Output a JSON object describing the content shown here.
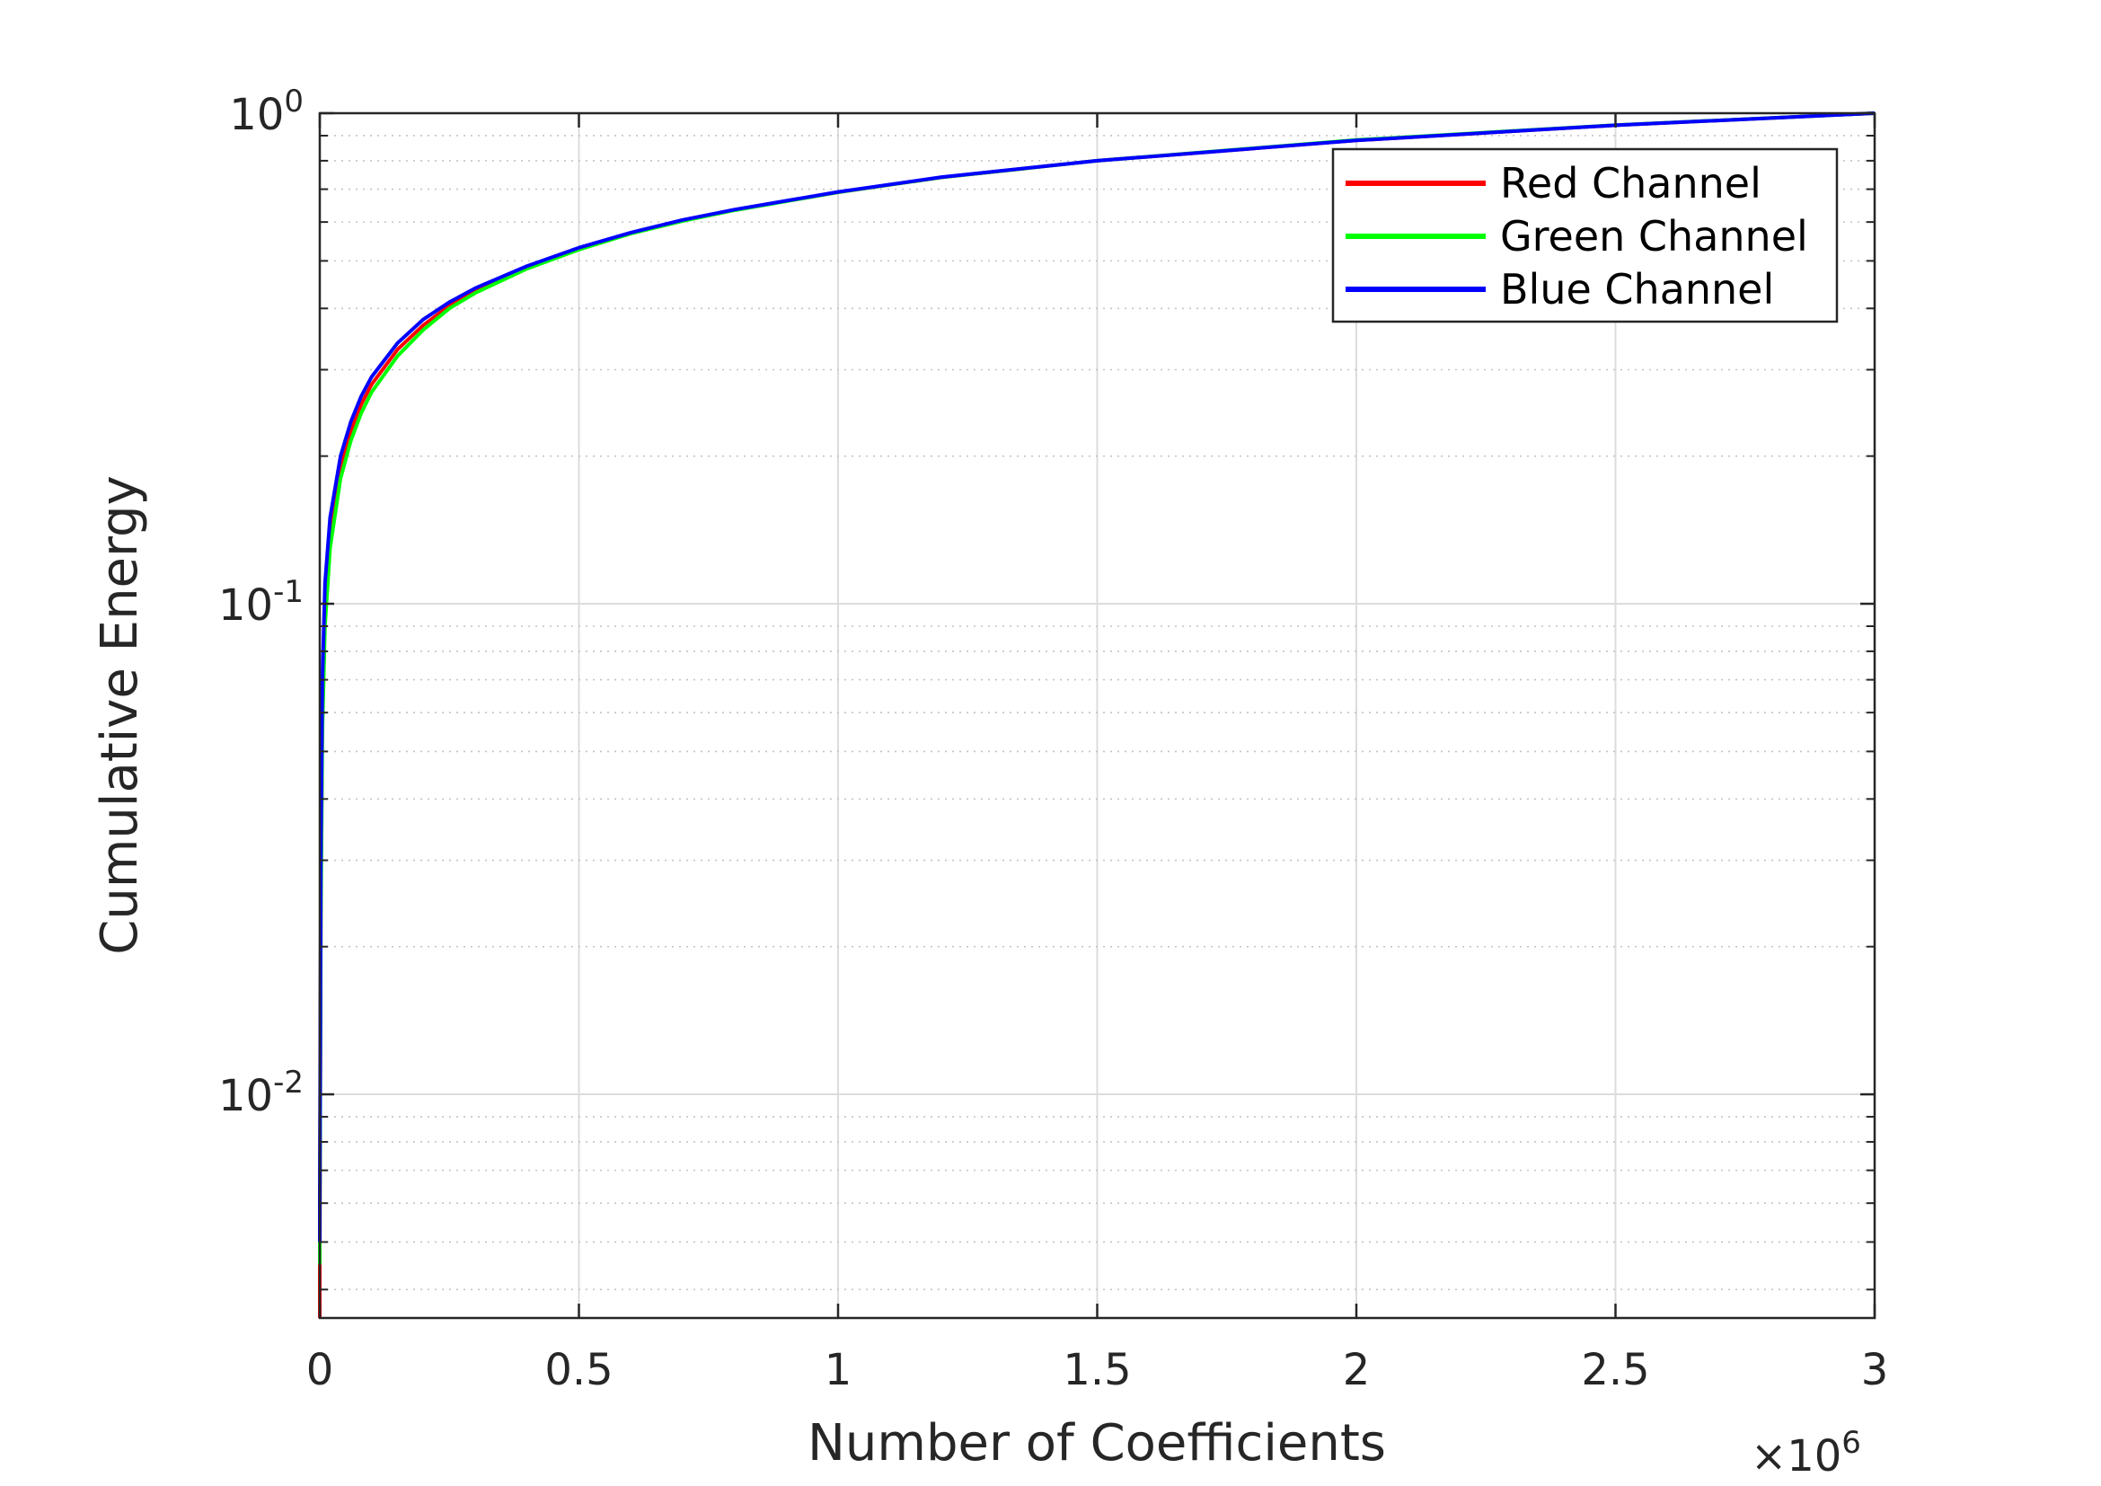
{
  "chart_data": {
    "type": "line",
    "xlabel": "Number of Coefficients",
    "ylabel": "Cumulative Energy",
    "x_scale": "linear",
    "y_scale": "log",
    "xlim": [
      0,
      3000000
    ],
    "ylim": [
      0.0035,
      1.0
    ],
    "x_exponent_label": {
      "base": "×10",
      "exponent": "6"
    },
    "x_ticks": [
      {
        "value": 0,
        "label": "0"
      },
      {
        "value": 500000,
        "label": "0.5"
      },
      {
        "value": 1000000,
        "label": "1"
      },
      {
        "value": 1500000,
        "label": "1.5"
      },
      {
        "value": 2000000,
        "label": "2"
      },
      {
        "value": 2500000,
        "label": "2.5"
      },
      {
        "value": 3000000,
        "label": "3"
      }
    ],
    "y_ticks": [
      {
        "value": 0.01,
        "base": "10",
        "exponent": "-2"
      },
      {
        "value": 0.1,
        "base": "10",
        "exponent": "-1"
      },
      {
        "value": 1,
        "base": "10",
        "exponent": "0"
      }
    ],
    "grid": true,
    "minor_grid": true,
    "legend_position": "top-right",
    "series": [
      {
        "name": "Red Channel",
        "color": "#ff0000",
        "x": [
          0,
          0,
          2000,
          5000,
          10000,
          20000,
          40000,
          60000,
          80000,
          100000,
          150000,
          200000,
          250000,
          300000,
          400000,
          500000,
          600000,
          700000,
          800000,
          1000000,
          1200000,
          1500000,
          2000000,
          2500000,
          3000000
        ],
        "y": [
          0.0035,
          0.0045,
          0.025,
          0.06,
          0.1,
          0.14,
          0.19,
          0.225,
          0.255,
          0.28,
          0.33,
          0.37,
          0.405,
          0.435,
          0.485,
          0.53,
          0.57,
          0.605,
          0.635,
          0.69,
          0.74,
          0.8,
          0.88,
          0.945,
          1.0
        ]
      },
      {
        "name": "Green Channel",
        "color": "#00ff00",
        "x": [
          0,
          0,
          2000,
          5000,
          10000,
          20000,
          40000,
          60000,
          80000,
          100000,
          150000,
          200000,
          250000,
          300000,
          400000,
          500000,
          600000,
          700000,
          800000,
          1000000,
          1200000,
          1500000,
          2000000,
          2500000,
          3000000
        ],
        "y": [
          0.0045,
          0.005,
          0.022,
          0.055,
          0.09,
          0.13,
          0.18,
          0.215,
          0.245,
          0.27,
          0.32,
          0.362,
          0.4,
          0.43,
          0.482,
          0.527,
          0.568,
          0.603,
          0.634,
          0.69,
          0.74,
          0.8,
          0.882,
          0.946,
          1.0
        ]
      },
      {
        "name": "Blue Channel",
        "color": "#0000ff",
        "x": [
          0,
          0,
          2000,
          5000,
          10000,
          20000,
          40000,
          60000,
          80000,
          100000,
          150000,
          200000,
          250000,
          300000,
          400000,
          500000,
          600000,
          700000,
          800000,
          1000000,
          1200000,
          1500000,
          2000000,
          2500000,
          3000000
        ],
        "y": [
          0.005,
          0.006,
          0.03,
          0.07,
          0.11,
          0.15,
          0.2,
          0.235,
          0.265,
          0.29,
          0.34,
          0.38,
          0.412,
          0.44,
          0.488,
          0.532,
          0.571,
          0.606,
          0.636,
          0.691,
          0.741,
          0.8,
          0.88,
          0.945,
          1.0
        ]
      }
    ]
  }
}
